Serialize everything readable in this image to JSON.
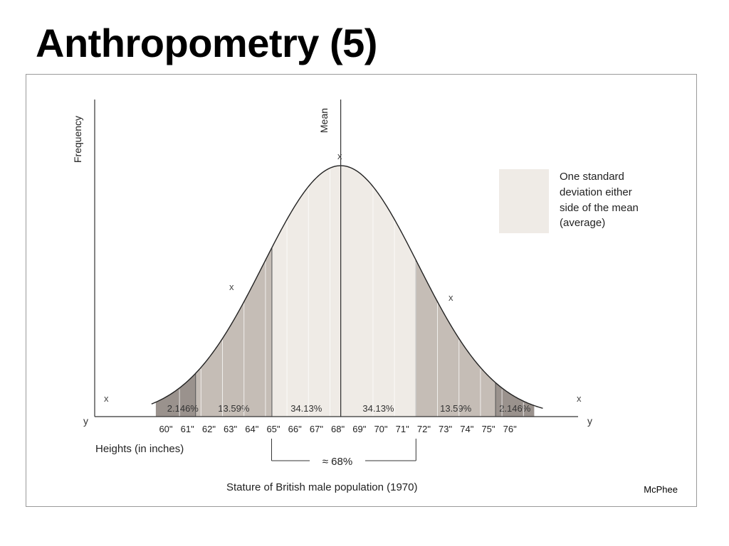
{
  "slide": {
    "title": "Anthropometry (5)",
    "credit": "McPhee"
  },
  "chart_data": {
    "type": "area",
    "title": "Stature of British male population (1970)",
    "xlabel": "Heights (in inches)",
    "ylabel": "Frequency",
    "mean_label": "Mean",
    "tick_labels": [
      "60\"",
      "61\"",
      "62\"",
      "63\"",
      "64\"",
      "65\"",
      "66\"",
      "67\"",
      "68\"",
      "69\"",
      "70\"",
      "71\"",
      "72\"",
      "73\"",
      "74\"",
      "75\"",
      "76\""
    ],
    "x_range": [
      59,
      78
    ],
    "mean": 68,
    "sd": 3.6,
    "bands": [
      {
        "from": 59.0,
        "to": 64.0,
        "label": ""
      },
      {
        "from": 60.0,
        "to": 61.25,
        "label": "2.146%"
      },
      {
        "from": 61.25,
        "to": 64.8,
        "label": "13.59%"
      },
      {
        "from": 64.8,
        "to": 68.0,
        "label": "34.13%"
      },
      {
        "from": 68.0,
        "to": 71.5,
        "label": "34.13%"
      },
      {
        "from": 71.5,
        "to": 75.2,
        "label": "13.59%"
      },
      {
        "from": 75.2,
        "to": 77.0,
        "label": "2.146%"
      }
    ],
    "band_colors": [
      "#9a928d",
      "#c5bdb6",
      "#efebe6",
      "#efebe6",
      "#c5bdb6",
      "#9a928d"
    ],
    "curve_markers": [
      "x",
      "x",
      "x",
      "x",
      "x"
    ],
    "axis_end_labels": [
      "y",
      "y"
    ],
    "range_bracket_label": "≈ 68%",
    "legend": {
      "color": "#efebe6",
      "lines": [
        "One standard",
        "deviation either",
        "side of the mean",
        "(average)"
      ]
    }
  }
}
